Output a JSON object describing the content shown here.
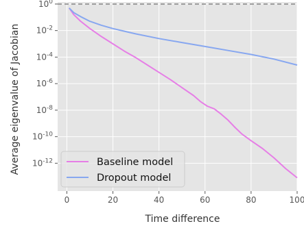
{
  "chart_data": {
    "type": "line",
    "title": "",
    "xlabel": "Time difference",
    "ylabel": "Average eigenvalue of Jacobian",
    "xlim": [
      -4,
      100
    ],
    "ylim_log10": [
      -14.1,
      0.15
    ],
    "y_scale": "log",
    "x_ticks": [
      0,
      20,
      40,
      60,
      80,
      100
    ],
    "x_tick_labels": [
      "0",
      "20",
      "40",
      "60",
      "80",
      "100"
    ],
    "y_ticks_log10": [
      0,
      -2,
      -4,
      -6,
      -8,
      -10,
      -12
    ],
    "y_tick_labels": [
      {
        "base": "10",
        "exp": "0"
      },
      {
        "base": "10",
        "exp": "-2"
      },
      {
        "base": "10",
        "exp": "-4"
      },
      {
        "base": "10",
        "exp": "-6"
      },
      {
        "base": "10",
        "exp": "-8"
      },
      {
        "base": "10",
        "exp": "-10"
      },
      {
        "base": "10",
        "exp": "-12"
      }
    ],
    "grid": true,
    "background": "#e5e5e5",
    "grid_color": "#ffffff",
    "reference_line": {
      "y": 1,
      "style": "dashed",
      "color": "#8c8c8c"
    },
    "legend_placement": "lower-left",
    "series": [
      {
        "name": "Baseline model",
        "color": "#e67ee6",
        "x": [
          1,
          3,
          6,
          10,
          15,
          20,
          25,
          30,
          35,
          40,
          45,
          50,
          55,
          58,
          61,
          64,
          67,
          70,
          73,
          76,
          80,
          85,
          90,
          95,
          100
        ],
        "y_log10": [
          -0.3,
          -0.8,
          -1.3,
          -1.85,
          -2.45,
          -3.0,
          -3.55,
          -4.05,
          -4.6,
          -5.15,
          -5.7,
          -6.3,
          -6.9,
          -7.35,
          -7.7,
          -7.9,
          -8.3,
          -8.75,
          -9.3,
          -9.8,
          -10.3,
          -10.9,
          -11.6,
          -12.4,
          -13.1
        ]
      },
      {
        "name": "Dropout model",
        "color": "#87a7f0",
        "x": [
          1,
          3,
          6,
          10,
          15,
          20,
          25,
          30,
          40,
          50,
          60,
          70,
          80,
          90,
          100
        ],
        "y_log10": [
          -0.3,
          -0.65,
          -0.95,
          -1.3,
          -1.6,
          -1.85,
          -2.05,
          -2.25,
          -2.6,
          -2.9,
          -3.2,
          -3.5,
          -3.8,
          -4.15,
          -4.6
        ]
      }
    ]
  }
}
